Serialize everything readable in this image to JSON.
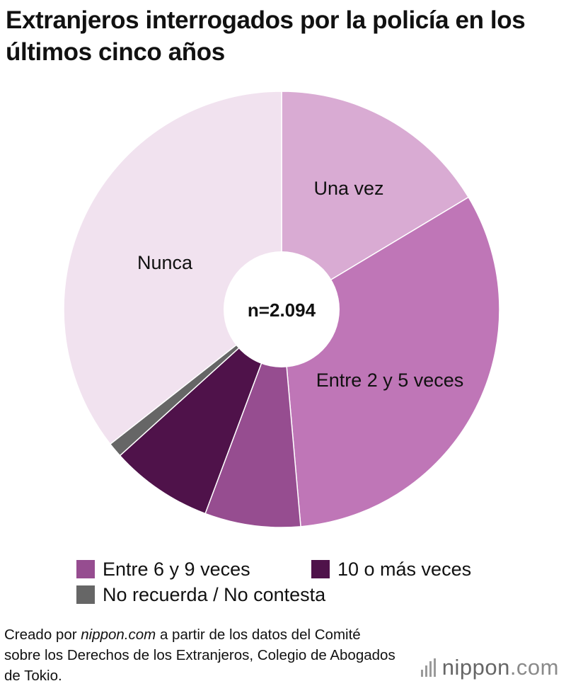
{
  "chart_data": {
    "type": "pie",
    "title": "Extranjeros interrogados por la policía en los últimos cinco años",
    "center_label": "n=2.094",
    "unit": "%",
    "slices": [
      {
        "label": "Una vez",
        "value": 16.4,
        "color": "#d9abd3"
      },
      {
        "label": "Entre 2 y 5 veces",
        "value": 32.2,
        "color": "#bf76b7"
      },
      {
        "label": "Entre 6 y 9 veces",
        "value": 7.1,
        "color": "#964d90"
      },
      {
        "label": "10 o más veces",
        "value": 7.6,
        "color": "#4f124a"
      },
      {
        "label": "No recuerda / No contesta",
        "value": 1.1,
        "color": "#666666"
      },
      {
        "label": "Nunca",
        "value": 35.6,
        "color": "#f1e2ef"
      }
    ],
    "slice_labels_shown": [
      "Una vez",
      "Entre 2 y 5 veces",
      "Nunca"
    ],
    "legend": {
      "placement": "bottom",
      "entries": [
        {
          "label": "Entre 6 y 9 veces",
          "color": "#964d90"
        },
        {
          "label": "10 o más veces",
          "color": "#4f124a"
        },
        {
          "label": "No recuerda / No contesta",
          "color": "#666666"
        }
      ]
    }
  },
  "source": {
    "prefix": "Creado por ",
    "site": "nippon.com",
    "rest": " a partir de los datos del Comité sobre los Derechos de los Extranjeros, Colegio de Abogados de Tokio."
  },
  "logo": {
    "text": "nippon",
    "suffix": ".com"
  }
}
